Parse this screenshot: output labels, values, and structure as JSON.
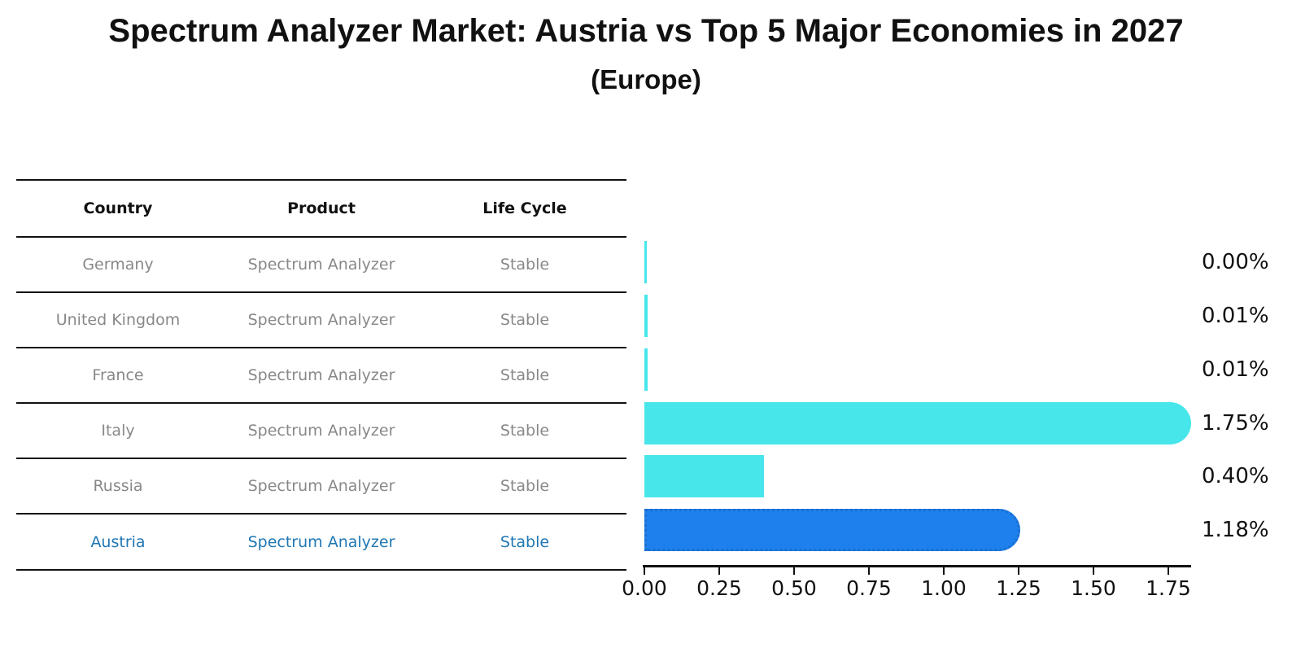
{
  "chart_data": {
    "type": "bar",
    "orientation": "horizontal",
    "title": "Spectrum Analyzer Market: Austria vs Top 5 Major Economies in 2027",
    "subtitle": "(Europe)",
    "categories": [
      "Germany",
      "United Kingdom",
      "France",
      "Italy",
      "Russia",
      "Austria"
    ],
    "values": [
      0.0,
      0.01,
      0.01,
      1.75,
      0.4,
      1.18
    ],
    "value_labels": [
      "0.00%",
      "0.01%",
      "0.01%",
      "1.75%",
      "0.40%",
      "1.18%"
    ],
    "x_ticks": [
      "0.00",
      "0.25",
      "0.50",
      "0.75",
      "1.00",
      "1.25",
      "1.50",
      "1.75"
    ],
    "xlim": [
      0,
      1.84
    ],
    "unit": "percent",
    "grid": false,
    "legend": false,
    "highlight_category": "Austria"
  },
  "table": {
    "headers": [
      "Country",
      "Product",
      "Life Cycle"
    ],
    "rows": [
      {
        "country": "Germany",
        "product": "Spectrum Analyzer",
        "life_cycle": "Stable"
      },
      {
        "country": "United Kingdom",
        "product": "Spectrum Analyzer",
        "life_cycle": "Stable"
      },
      {
        "country": "France",
        "product": "Spectrum Analyzer",
        "life_cycle": "Stable"
      },
      {
        "country": "Italy",
        "product": "Spectrum Analyzer",
        "life_cycle": "Stable"
      },
      {
        "country": "Russia",
        "product": "Spectrum Analyzer",
        "life_cycle": "Stable"
      },
      {
        "country": "Austria",
        "product": "Spectrum Analyzer",
        "life_cycle": "Stable"
      }
    ],
    "highlighted_row": "Austria"
  },
  "colors": {
    "background": "#ffffff",
    "ink": "#111111",
    "table_text": "#888888",
    "bar": "#47e6ea",
    "highlight_bar": "#1e80ec",
    "highlight_bar_edge": "#1a6fd0",
    "highlight_text": "#1f77b4"
  }
}
